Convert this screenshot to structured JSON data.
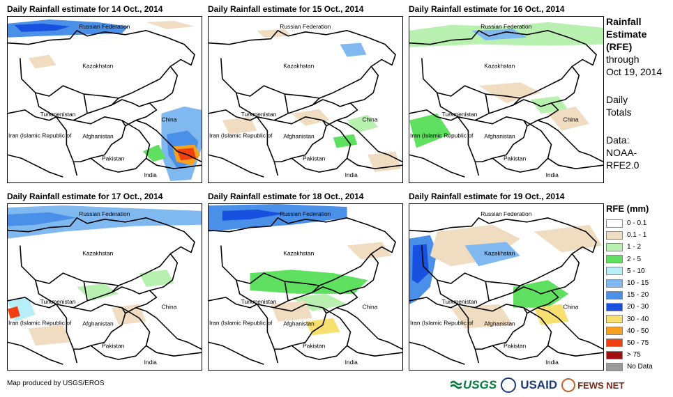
{
  "panels": [
    {
      "title": "Daily Rainfall estimate for 14 Oct., 2014",
      "key": "p1"
    },
    {
      "title": "Daily Rainfall estimate for 15 Oct., 2014",
      "key": "p2"
    },
    {
      "title": "Daily Rainfall estimate for 16 Oct., 2014",
      "key": "p3"
    },
    {
      "title": "Daily Rainfall estimate for 17 Oct., 2014",
      "key": "p4"
    },
    {
      "title": "Daily Rainfall estimate for 18 Oct., 2014",
      "key": "p5"
    },
    {
      "title": "Daily Rainfall estimate for 19 Oct., 2014",
      "key": "p6"
    }
  ],
  "map_labels": {
    "russia": "Russian Federation",
    "kazakhstan": "Kazakhstan",
    "turkmenistan": "Turkmenistan",
    "china": "China",
    "iran": "Iran  (Islamic Republic of",
    "afghanistan": "Afghanistan",
    "pakistan": "Pakistan",
    "india": "India"
  },
  "side": {
    "title_line1": "Rainfall",
    "title_line2": "Estimate",
    "title_line3": "(RFE)",
    "through": "through",
    "date": "Oct 19, 2014",
    "daily1": "Daily",
    "daily2": "Totals",
    "data1": "Data:",
    "data2": "NOAA-",
    "data3": "RFE2.0"
  },
  "legend": {
    "title": "RFE (mm)",
    "items": [
      {
        "label": "0 - 0.1",
        "color": "#ffffff"
      },
      {
        "label": "0.1 - 1",
        "color": "#f0dcc0"
      },
      {
        "label": "1 - 2",
        "color": "#b8f0b0"
      },
      {
        "label": "2 - 5",
        "color": "#60e060"
      },
      {
        "label": "5 - 10",
        "color": "#b8eef8"
      },
      {
        "label": "10 - 15",
        "color": "#80b8f0"
      },
      {
        "label": "15 - 20",
        "color": "#4a90e8"
      },
      {
        "label": "20 - 30",
        "color": "#1850e0"
      },
      {
        "label": "30 - 40",
        "color": "#f8e070"
      },
      {
        "label": "40 - 50",
        "color": "#f8a020"
      },
      {
        "label": "50 - 75",
        "color": "#f04010"
      },
      {
        "label": "> 75",
        "color": "#a01010"
      },
      {
        "label": "No Data",
        "color": "#9a9a9a"
      }
    ]
  },
  "credit": "Map produced by USGS/EROS",
  "logos": {
    "usgs": "USGS",
    "usaid": "USAID",
    "fews": "FEWS NET"
  }
}
